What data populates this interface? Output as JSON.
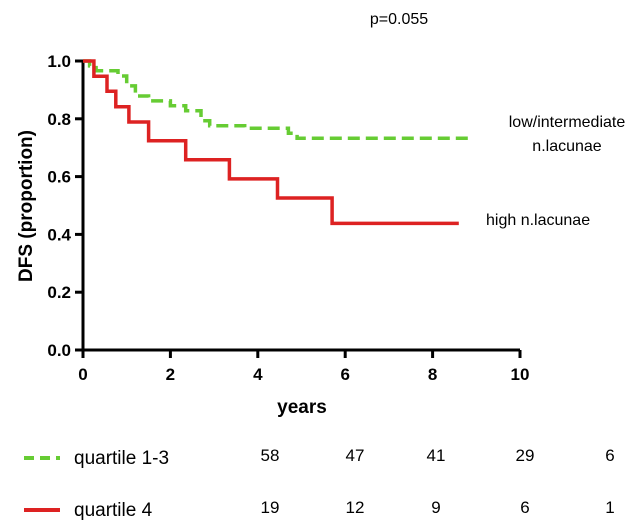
{
  "chart_data": {
    "type": "line",
    "step": true,
    "annotation": "p=0.055",
    "xlabel": "years",
    "ylabel": "DFS (proportion)",
    "xlim": [
      0,
      10
    ],
    "ylim": [
      0.0,
      1.0
    ],
    "xticks": [
      0,
      2,
      4,
      6,
      8,
      10
    ],
    "yticks": [
      0.0,
      0.2,
      0.4,
      0.6,
      0.8,
      1.0
    ],
    "xtick_labels": [
      "0",
      "2",
      "4",
      "6",
      "8",
      "10"
    ],
    "ytick_labels": [
      "0.0",
      "0.2",
      "0.4",
      "0.6",
      "0.8",
      "1.0"
    ],
    "grid": false,
    "series": [
      {
        "name": "quartile 1-3",
        "color": "#66cc33",
        "dash": true,
        "end_label": [
          "low/intermediate",
          "n.lacunae"
        ],
        "steps": [
          [
            0,
            1.0
          ],
          [
            0.15,
            0.983
          ],
          [
            0.3,
            0.966
          ],
          [
            0.8,
            0.948
          ],
          [
            1.0,
            0.914
          ],
          [
            1.2,
            0.879
          ],
          [
            1.5,
            0.862
          ],
          [
            2.0,
            0.845
          ],
          [
            2.35,
            0.828
          ],
          [
            2.7,
            0.793
          ],
          [
            2.9,
            0.776
          ],
          [
            3.7,
            0.767
          ],
          [
            4.7,
            0.75
          ],
          [
            4.9,
            0.733
          ],
          [
            8.9,
            0.733
          ]
        ],
        "at_risk": [
          58,
          47,
          41,
          29,
          6
        ]
      },
      {
        "name": "quartile 4",
        "color": "#dd2222",
        "dash": false,
        "end_label": [
          "high n.lacunae"
        ],
        "steps": [
          [
            0,
            1.0
          ],
          [
            0.25,
            0.947
          ],
          [
            0.55,
            0.895
          ],
          [
            0.75,
            0.842
          ],
          [
            1.05,
            0.789
          ],
          [
            1.5,
            0.724
          ],
          [
            2.35,
            0.658
          ],
          [
            3.35,
            0.592
          ],
          [
            4.45,
            0.526
          ],
          [
            5.7,
            0.438
          ],
          [
            8.6,
            0.438
          ]
        ],
        "at_risk": [
          19,
          12,
          9,
          6,
          1
        ]
      }
    ],
    "risk_table_times": [
      0,
      2,
      4,
      6,
      8
    ]
  }
}
